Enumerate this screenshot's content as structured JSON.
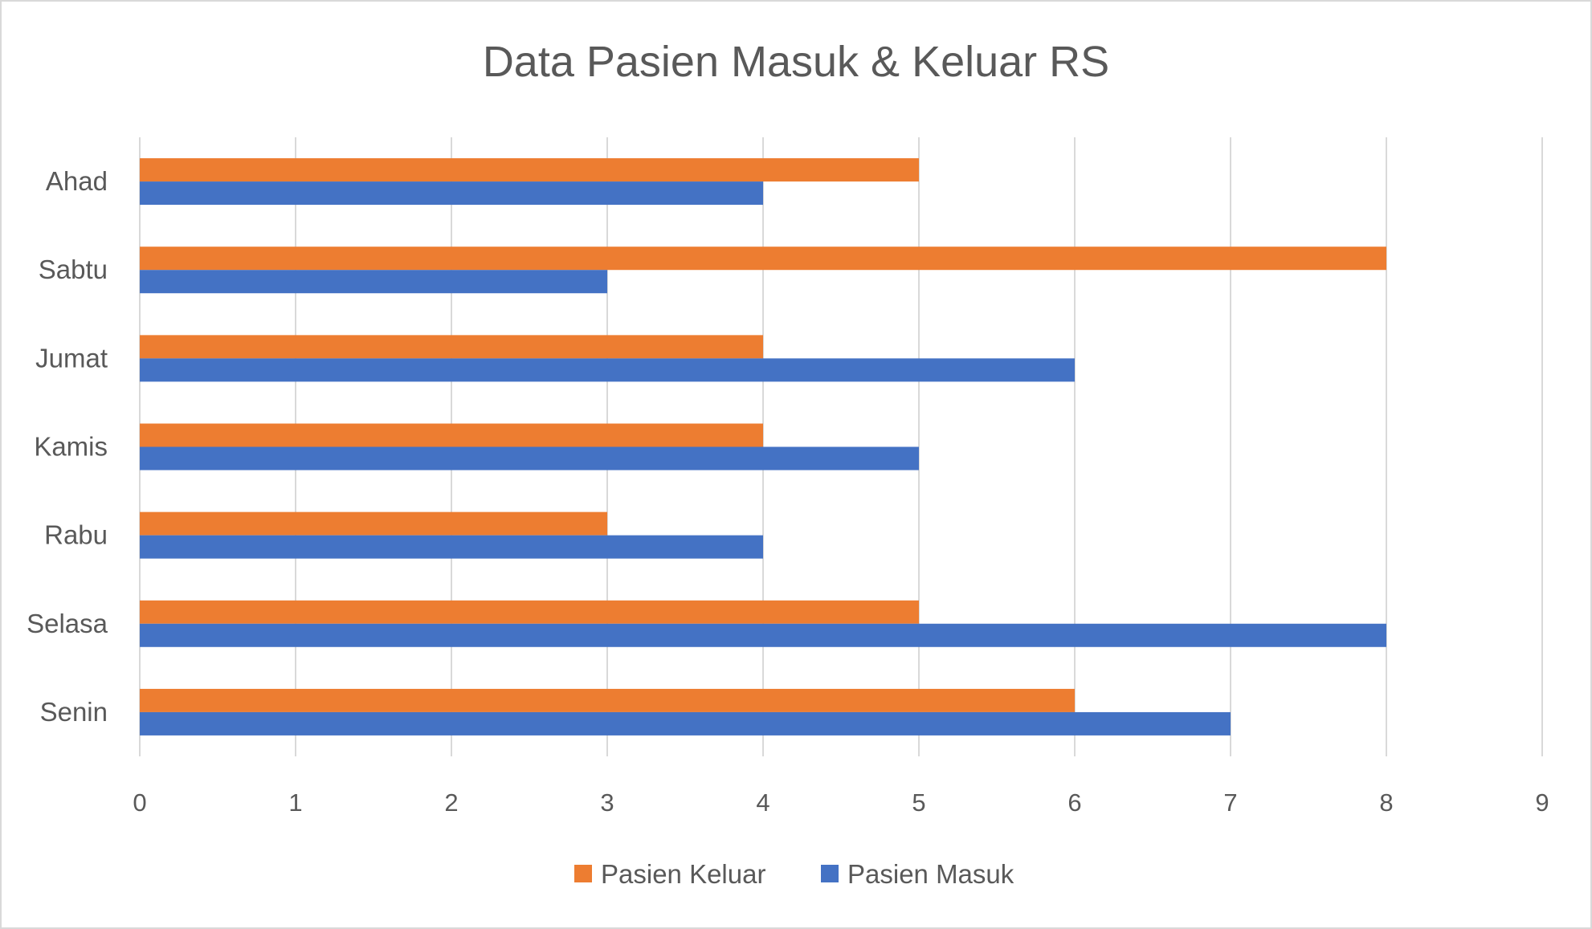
{
  "chart_data": {
    "type": "bar",
    "orientation": "horizontal",
    "title": "Data Pasien Masuk & Keluar RS",
    "xlabel": "",
    "ylabel": "",
    "categories": [
      "Senin",
      "Selasa",
      "Rabu",
      "Kamis",
      "Jumat",
      "Sabtu",
      "Ahad"
    ],
    "series": [
      {
        "name": "Pasien Masuk",
        "color": "#4472C4",
        "values": [
          7,
          8,
          4,
          5,
          6,
          3,
          4
        ]
      },
      {
        "name": "Pasien Keluar",
        "color": "#ED7D31",
        "values": [
          6,
          5,
          3,
          4,
          4,
          8,
          5
        ]
      }
    ],
    "xlim": [
      0,
      9
    ],
    "xticks": [
      "0",
      "1",
      "2",
      "3",
      "4",
      "5",
      "6",
      "7",
      "8",
      "9"
    ],
    "grid": true,
    "legend": [
      "Pasien Keluar",
      "Pasien Masuk"
    ],
    "legend_position": "bottom"
  }
}
